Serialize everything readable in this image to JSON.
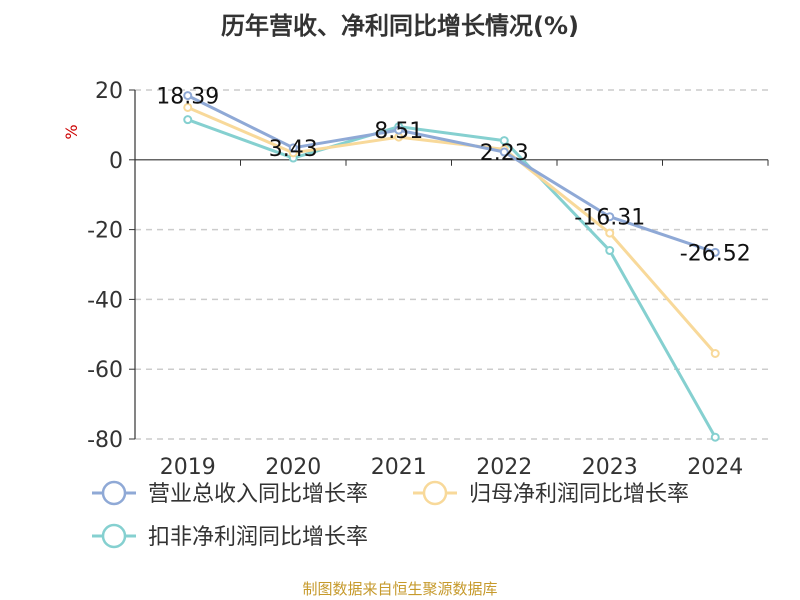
{
  "chart_data": {
    "type": "line",
    "title": "历年营收、净利同比增长情况(%)",
    "ylabel": "%",
    "xlabel": "",
    "categories": [
      "2019",
      "2020",
      "2021",
      "2022",
      "2023",
      "2024"
    ],
    "ylim": [
      -80,
      20
    ],
    "yticks": [
      20,
      0,
      -20,
      -40,
      -60,
      -80
    ],
    "grid": true,
    "legend_position": "bottom",
    "series": [
      {
        "name": "营业总收入同比增长率",
        "color": "#8fa9d6",
        "values": [
          18.39,
          3.43,
          8.51,
          2.23,
          -16.31,
          -26.52
        ],
        "labels": [
          "18.39",
          "3.43",
          "8.51",
          "2.23",
          "-16.31",
          "-26.52"
        ]
      },
      {
        "name": "归母净利润同比增长率",
        "color": "#f8d99a",
        "values": [
          15.0,
          2.0,
          6.5,
          3.0,
          -21.0,
          -55.5
        ]
      },
      {
        "name": "扣非净利润同比增长率",
        "color": "#85d0d0",
        "values": [
          11.5,
          0.5,
          9.5,
          5.5,
          -26.0,
          -79.5
        ]
      }
    ]
  },
  "source": "制图数据来自恒生聚源数据库"
}
